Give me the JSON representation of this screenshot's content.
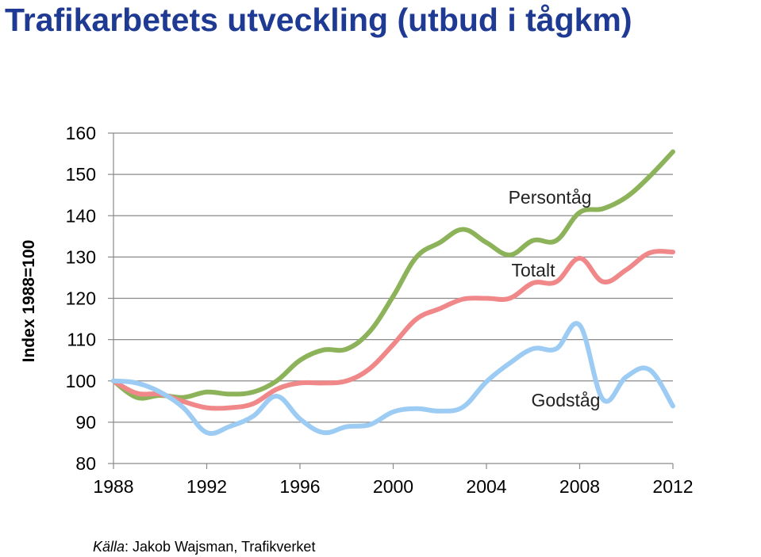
{
  "title": "Trafikarbetets utveckling (utbud i tågkm)",
  "source": {
    "label": "Källa",
    "text": ": Jakob Wajsman, Trafikverket"
  },
  "chart_data": {
    "type": "line",
    "ylabel": "Index 1988=100",
    "ylim": [
      80,
      160
    ],
    "yticks": [
      80,
      90,
      100,
      110,
      120,
      130,
      140,
      150,
      160
    ],
    "xlim": [
      1988,
      2012
    ],
    "xticks": [
      1988,
      1992,
      1996,
      2000,
      2004,
      2008,
      2012
    ],
    "grid": "horizontal",
    "x": [
      1988,
      1989,
      1990,
      1991,
      1992,
      1993,
      1994,
      1995,
      1996,
      1997,
      1998,
      1999,
      2000,
      2001,
      2002,
      2003,
      2004,
      2005,
      2006,
      2007,
      2008,
      2009,
      2010,
      2011,
      2012
    ],
    "series": [
      {
        "name": "Persontåg",
        "color": "#8db35a",
        "values": [
          100,
          96,
          96.5,
          96,
          97.3,
          96.8,
          97.3,
          100,
          105,
          107.5,
          107.7,
          112,
          120.5,
          130,
          133.5,
          136.7,
          133.5,
          130.5,
          134,
          134,
          140.8,
          141.7,
          144.5,
          149.5,
          155.5
        ]
      },
      {
        "name": "Totalt",
        "color": "#f0888a",
        "values": [
          100,
          97,
          96.8,
          95,
          93.5,
          93.5,
          94.5,
          98,
          99.5,
          99.5,
          100,
          103,
          108.8,
          115,
          117.5,
          119.8,
          120,
          120,
          123.7,
          124,
          129.7,
          124,
          126.9,
          131,
          131.2
        ]
      },
      {
        "name": "Godståg",
        "color": "#9ccbf4",
        "values": [
          100,
          99.5,
          97.3,
          93.5,
          87.5,
          89,
          91.5,
          96.3,
          90.8,
          87.5,
          88.9,
          89.4,
          92.5,
          93.3,
          92.7,
          93.7,
          99.8,
          104.3,
          107.8,
          107.8,
          113.5,
          95.5,
          101,
          102.7,
          93.9
        ]
      }
    ]
  }
}
